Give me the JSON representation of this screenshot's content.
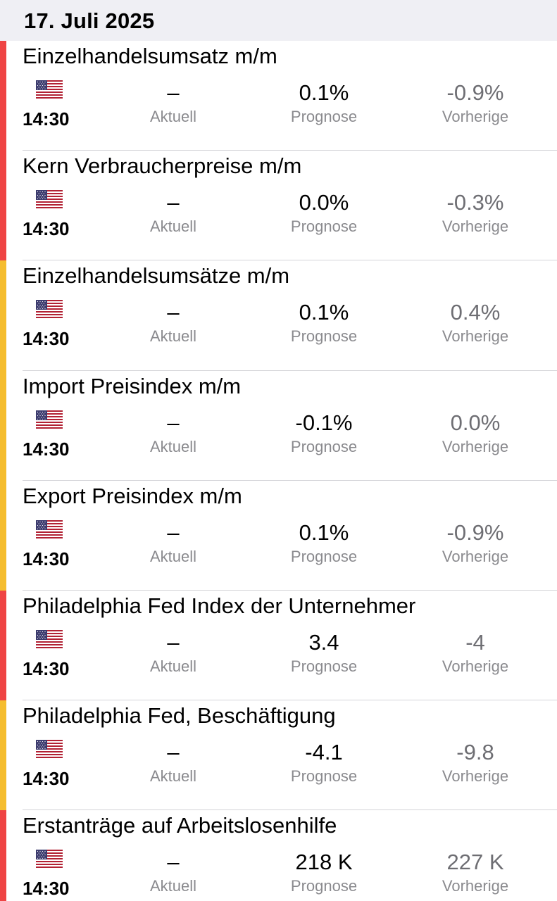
{
  "date_header": "17. Juli 2025",
  "colors": {
    "high": "#ef4444",
    "medium": "#f5bd2f"
  },
  "labels": {
    "actual": "Aktuell",
    "forecast": "Prognose",
    "previous": "Vorherige"
  },
  "events": [
    {
      "title": "Einzelhandelsumsatz m/m",
      "country": "us-flag-icon",
      "time": "14:30",
      "actual": "–",
      "forecast": "0.1%",
      "previous": "-0.9%",
      "importance": "high"
    },
    {
      "title": "Kern Verbraucherpreise m/m",
      "country": "us-flag-icon",
      "time": "14:30",
      "actual": "–",
      "forecast": "0.0%",
      "previous": "-0.3%",
      "importance": "high"
    },
    {
      "title": "Einzelhandelsumsätze m/m",
      "country": "us-flag-icon",
      "time": "14:30",
      "actual": "–",
      "forecast": "0.1%",
      "previous": "0.4%",
      "importance": "medium"
    },
    {
      "title": "Import Preisindex m/m",
      "country": "us-flag-icon",
      "time": "14:30",
      "actual": "–",
      "forecast": "-0.1%",
      "previous": "0.0%",
      "importance": "medium"
    },
    {
      "title": "Export Preisindex m/m",
      "country": "us-flag-icon",
      "time": "14:30",
      "actual": "–",
      "forecast": "0.1%",
      "previous": "-0.9%",
      "importance": "medium"
    },
    {
      "title": "Philadelphia Fed Index der Unternehmer",
      "country": "us-flag-icon",
      "time": "14:30",
      "actual": "–",
      "forecast": "3.4",
      "previous": "-4",
      "importance": "high"
    },
    {
      "title": "Philadelphia Fed, Beschäftigung",
      "country": "us-flag-icon",
      "time": "14:30",
      "actual": "–",
      "forecast": "-4.1",
      "previous": "-9.8",
      "importance": "medium"
    },
    {
      "title": "Erstanträge auf Arbeitslosenhilfe",
      "country": "us-flag-icon",
      "time": "14:30",
      "actual": "–",
      "forecast": "218 K",
      "previous": "227 K",
      "importance": "high"
    }
  ]
}
